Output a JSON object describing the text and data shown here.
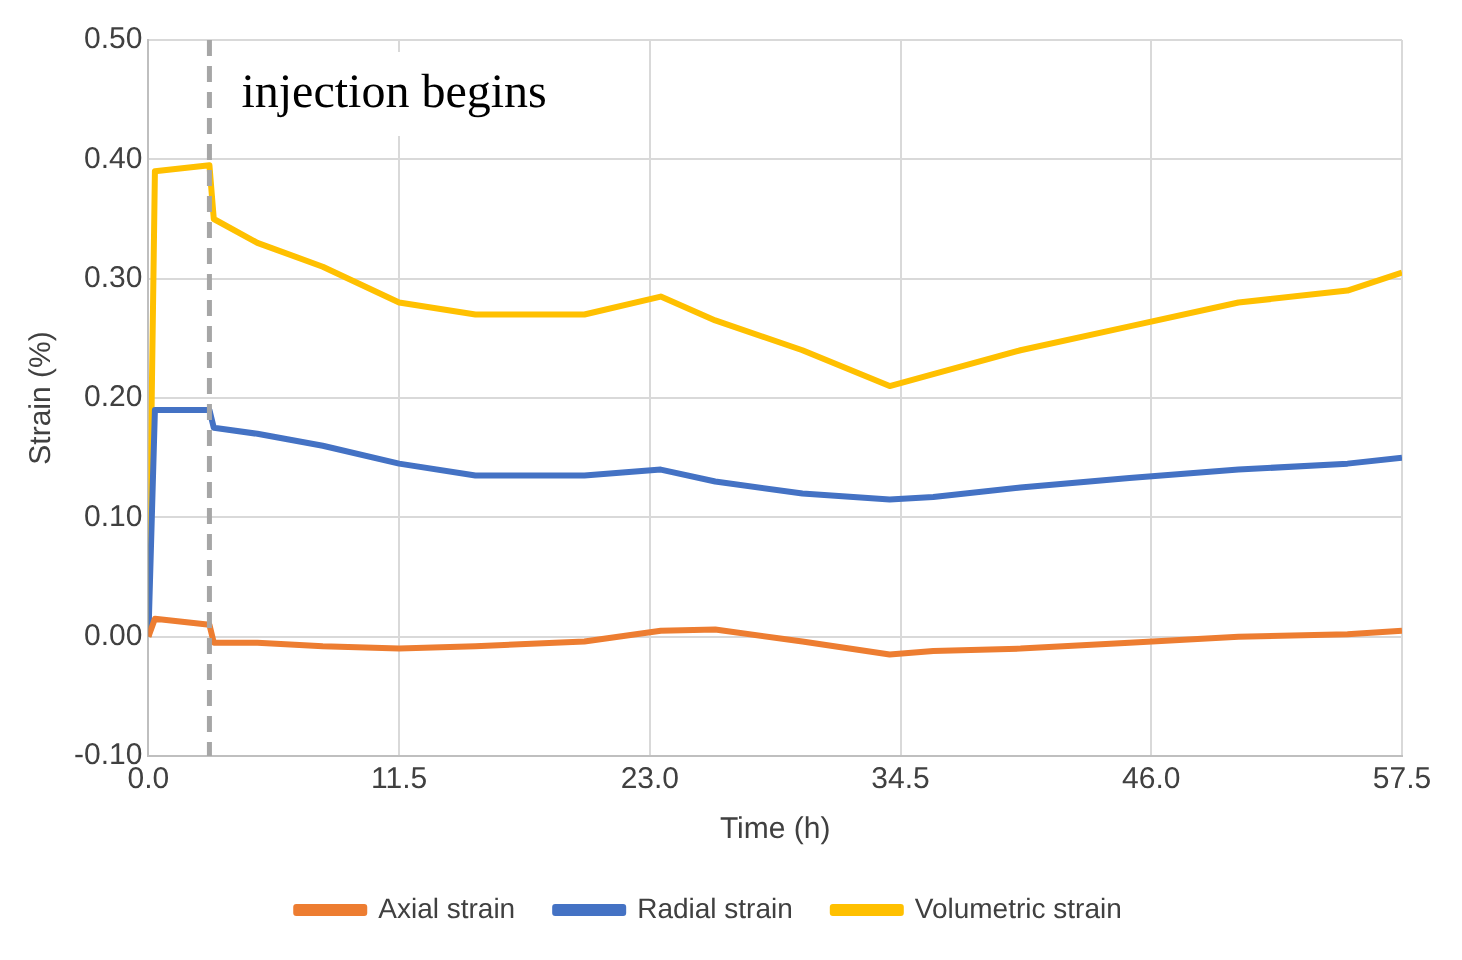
{
  "chart_data": {
    "type": "line",
    "xlabel": "Time (h)",
    "ylabel": "Strain (%)",
    "xlim": [
      0,
      57.5
    ],
    "xticks": [
      {
        "value": 0,
        "label": "0.0"
      },
      11.5,
      {
        "value": 23,
        "label": "23.0"
      },
      34.5,
      {
        "value": 46,
        "label": "46.0"
      },
      57.5
    ],
    "ylim": [
      -0.1,
      0.5
    ],
    "yticks": [
      {
        "value": -0.1,
        "label": "-0.10"
      },
      {
        "value": 0,
        "label": "0.00"
      },
      {
        "value": 0.1,
        "label": "0.10"
      },
      {
        "value": 0.2,
        "label": "0.20"
      },
      {
        "value": 0.3,
        "label": "0.30"
      },
      {
        "value": 0.4,
        "label": "0.40"
      },
      {
        "value": 0.5,
        "label": "0.50"
      }
    ],
    "grid": true,
    "legend": "bottom",
    "marker": "none",
    "line_style": "solid",
    "ref_lines": [
      {
        "axis": "x",
        "value": 2.8,
        "label": "injection begins",
        "color": "#a6a6a6",
        "line_style": "dashed"
      }
    ],
    "x": [
      0,
      0.3,
      2.8,
      3,
      5,
      8,
      11.5,
      15,
      20,
      23.5,
      26,
      30,
      34,
      36,
      40,
      45,
      50,
      55,
      57.5
    ],
    "series": [
      {
        "name": "Axial strain",
        "color": "#ed7d31",
        "values": [
          0,
          0.015,
          0.01,
          -0.005,
          -0.005,
          -0.008,
          -0.01,
          -0.008,
          -0.004,
          0.005,
          0.006,
          -0.004,
          -0.015,
          -0.012,
          -0.01,
          -0.005,
          0,
          0.002,
          0.005
        ]
      },
      {
        "name": "Radial strain",
        "color": "#4472c4",
        "values": [
          0,
          0.19,
          0.19,
          0.175,
          0.17,
          0.16,
          0.145,
          0.135,
          0.135,
          0.14,
          0.13,
          0.12,
          0.115,
          0.117,
          0.125,
          0.133,
          0.14,
          0.145,
          0.15
        ]
      },
      {
        "name": "Volumetric strain",
        "color": "#ffc000",
        "values": [
          0,
          0.39,
          0.395,
          0.35,
          0.33,
          0.31,
          0.28,
          0.27,
          0.27,
          0.285,
          0.265,
          0.24,
          0.21,
          0.22,
          0.24,
          0.26,
          0.28,
          0.29,
          0.305
        ]
      }
    ]
  }
}
